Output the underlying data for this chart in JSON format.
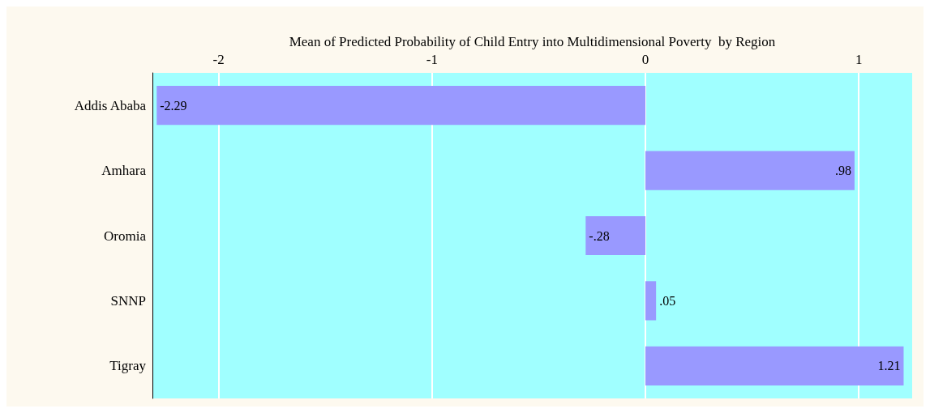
{
  "chart_data": {
    "type": "bar",
    "orientation": "horizontal",
    "xlabel": "Mean of Predicted Probability of Child Entry into Multidimensional Poverty  by Region",
    "categories": [
      "Addis Ababa",
      "Amhara",
      "Oromia",
      "SNNP",
      "Tigray"
    ],
    "values": [
      -2.29,
      0.98,
      -0.28,
      0.05,
      1.21
    ],
    "value_labels": [
      "-2.29",
      ".98",
      "-.28",
      ".05",
      "1.21"
    ],
    "color": "#9999ff",
    "xlim": [
      -2.31,
      1.25
    ],
    "xticks": [
      -2,
      -1,
      0,
      1
    ],
    "grid": "x"
  }
}
